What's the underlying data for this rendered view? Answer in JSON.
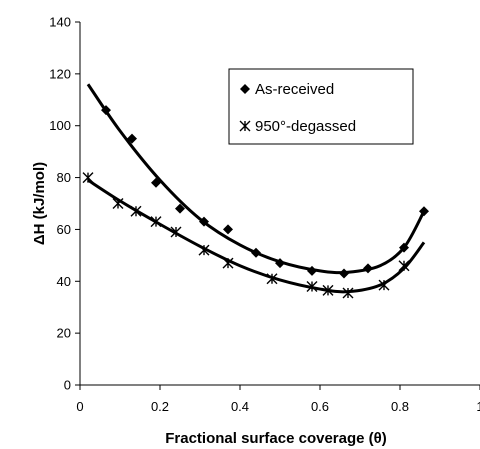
{
  "chart_data": {
    "type": "scatter",
    "xlabel": "Fractional surface coverage (θ)",
    "ylabel": "ΔH (kJ/mol)",
    "xlim": [
      0,
      1
    ],
    "ylim": [
      0,
      140
    ],
    "x_ticks": [
      "0",
      "0.2",
      "0.4",
      "0.6",
      "0.8",
      "1"
    ],
    "y_ticks": [
      "0",
      "20",
      "40",
      "60",
      "80",
      "100",
      "120",
      "140"
    ],
    "grid": false,
    "legend_position": "top-right",
    "series": [
      {
        "name": "As-received",
        "marker": "diamond",
        "color": "#000000",
        "points": [
          {
            "x": 0.065,
            "y": 106
          },
          {
            "x": 0.13,
            "y": 95
          },
          {
            "x": 0.19,
            "y": 78
          },
          {
            "x": 0.25,
            "y": 68
          },
          {
            "x": 0.31,
            "y": 63
          },
          {
            "x": 0.37,
            "y": 60
          },
          {
            "x": 0.44,
            "y": 51
          },
          {
            "x": 0.5,
            "y": 47
          },
          {
            "x": 0.58,
            "y": 44
          },
          {
            "x": 0.66,
            "y": 43
          },
          {
            "x": 0.72,
            "y": 45
          },
          {
            "x": 0.81,
            "y": 53
          },
          {
            "x": 0.86,
            "y": 67
          }
        ],
        "trend": [
          {
            "x": 0.02,
            "y": 116
          },
          {
            "x": 0.1,
            "y": 98
          },
          {
            "x": 0.2,
            "y": 79
          },
          {
            "x": 0.3,
            "y": 64
          },
          {
            "x": 0.4,
            "y": 54
          },
          {
            "x": 0.5,
            "y": 47.5
          },
          {
            "x": 0.6,
            "y": 44
          },
          {
            "x": 0.67,
            "y": 43.5
          },
          {
            "x": 0.75,
            "y": 46
          },
          {
            "x": 0.81,
            "y": 53
          },
          {
            "x": 0.86,
            "y": 67
          }
        ]
      },
      {
        "name": "950°-degassed",
        "marker": "asterisk",
        "color": "#000000",
        "points": [
          {
            "x": 0.02,
            "y": 80
          },
          {
            "x": 0.095,
            "y": 70
          },
          {
            "x": 0.14,
            "y": 67
          },
          {
            "x": 0.19,
            "y": 63
          },
          {
            "x": 0.24,
            "y": 59
          },
          {
            "x": 0.31,
            "y": 52
          },
          {
            "x": 0.37,
            "y": 47
          },
          {
            "x": 0.48,
            "y": 41
          },
          {
            "x": 0.58,
            "y": 38
          },
          {
            "x": 0.62,
            "y": 36.5
          },
          {
            "x": 0.67,
            "y": 35.5
          },
          {
            "x": 0.76,
            "y": 38.5
          },
          {
            "x": 0.81,
            "y": 46
          }
        ],
        "trend": [
          {
            "x": 0.02,
            "y": 79
          },
          {
            "x": 0.1,
            "y": 71
          },
          {
            "x": 0.2,
            "y": 62
          },
          {
            "x": 0.3,
            "y": 53.5
          },
          {
            "x": 0.4,
            "y": 46
          },
          {
            "x": 0.5,
            "y": 40.5
          },
          {
            "x": 0.6,
            "y": 37
          },
          {
            "x": 0.67,
            "y": 36
          },
          {
            "x": 0.75,
            "y": 38.5
          },
          {
            "x": 0.81,
            "y": 45
          },
          {
            "x": 0.86,
            "y": 55
          }
        ]
      }
    ]
  }
}
